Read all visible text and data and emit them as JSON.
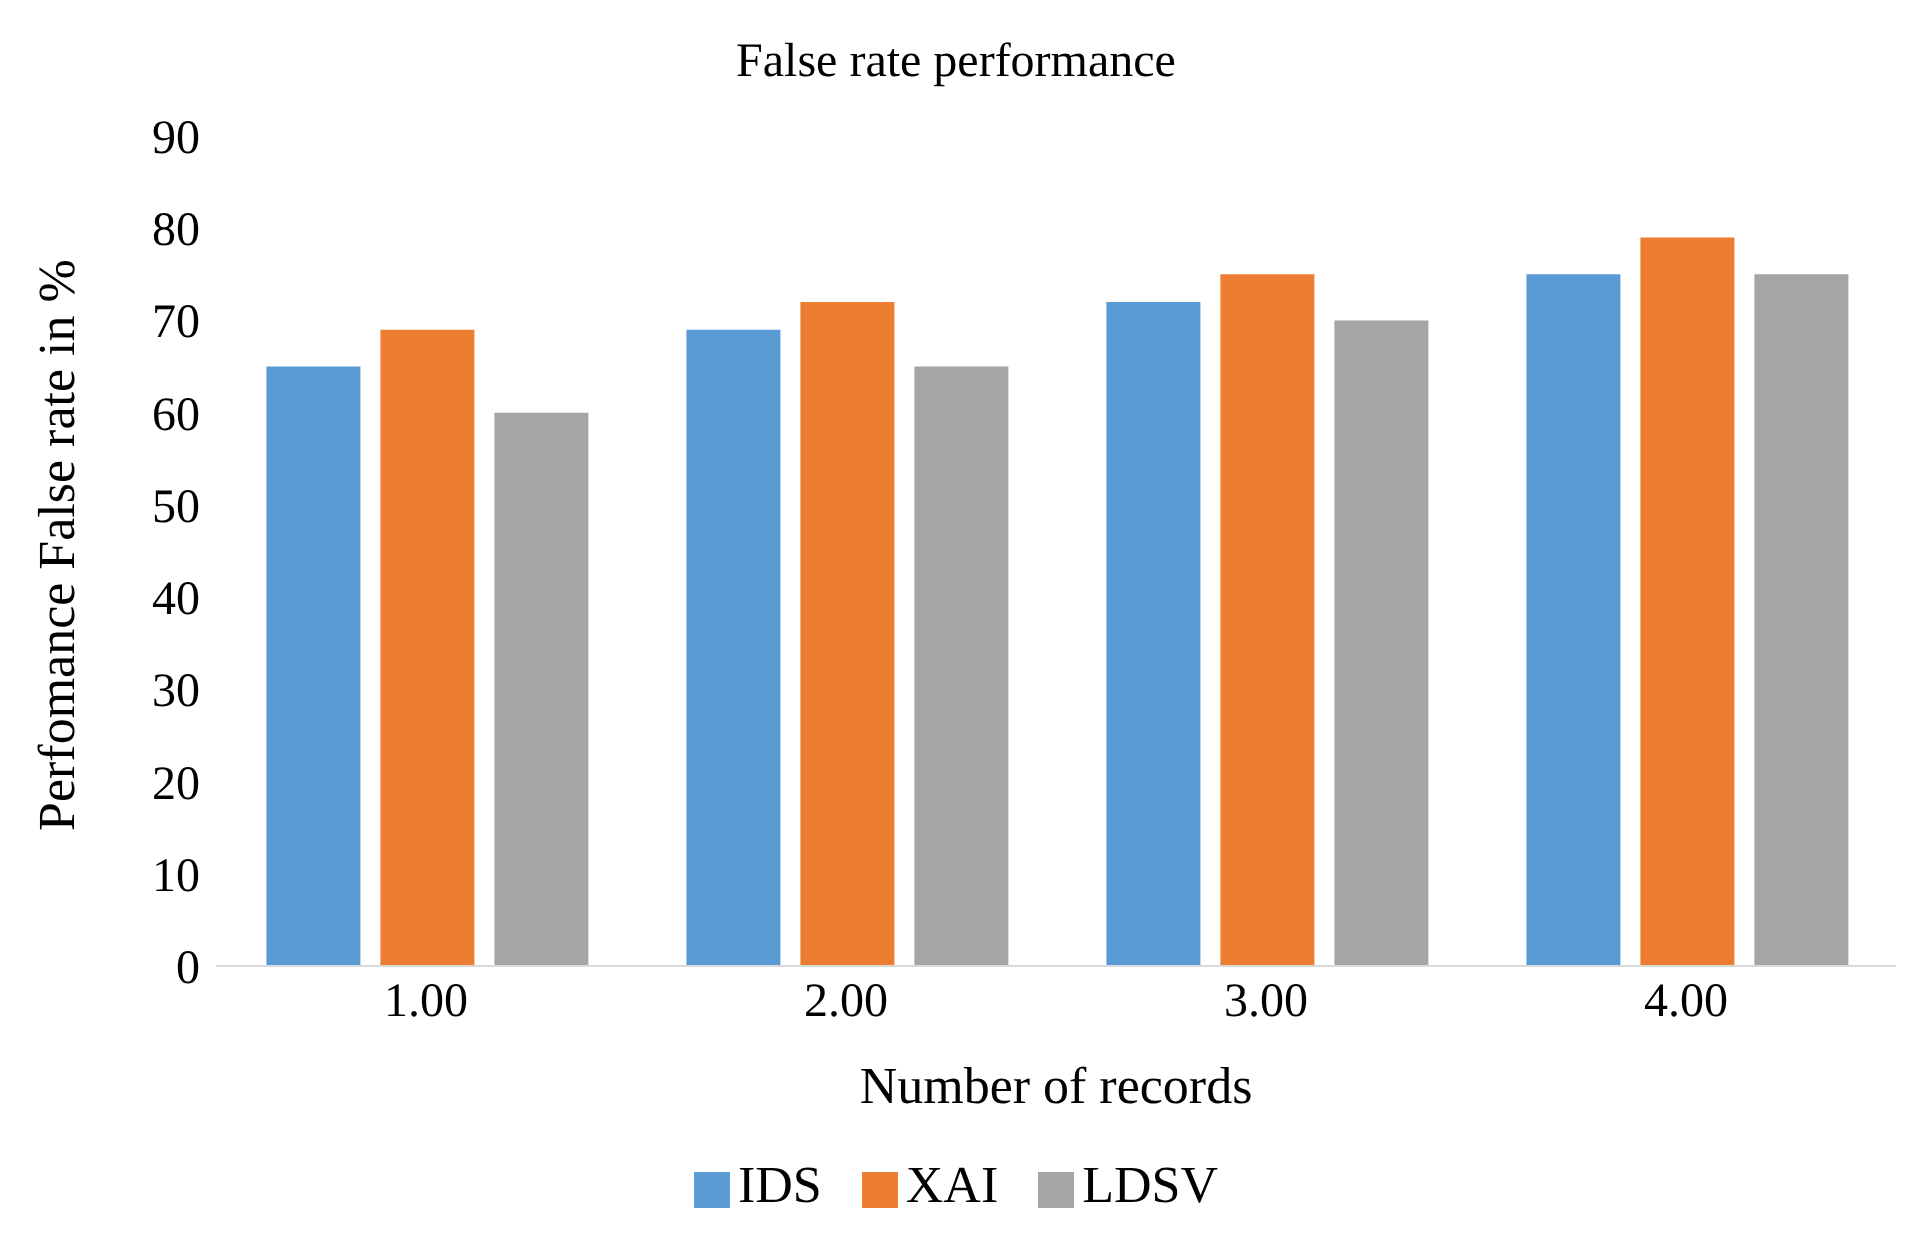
{
  "chart_data": {
    "type": "bar",
    "title": "False rate performance",
    "xlabel": "Number of records",
    "ylabel": "Perfomance False rate in %",
    "categories": [
      "1.00",
      "2.00",
      "3.00",
      "4.00"
    ],
    "series": [
      {
        "name": "IDS",
        "color": "#5b9bd5",
        "values": [
          65,
          69,
          72,
          75
        ]
      },
      {
        "name": "XAI",
        "color": "#ed7d31",
        "values": [
          69,
          72,
          75,
          79
        ]
      },
      {
        "name": "LDSV",
        "color": "#a5a5a5",
        "values": [
          60,
          65,
          70,
          75
        ]
      }
    ],
    "ylim": [
      0,
      90
    ],
    "yticks": [
      0,
      10,
      20,
      30,
      40,
      50,
      60,
      70,
      80,
      90
    ],
    "grid": false,
    "legend": "bottom"
  }
}
